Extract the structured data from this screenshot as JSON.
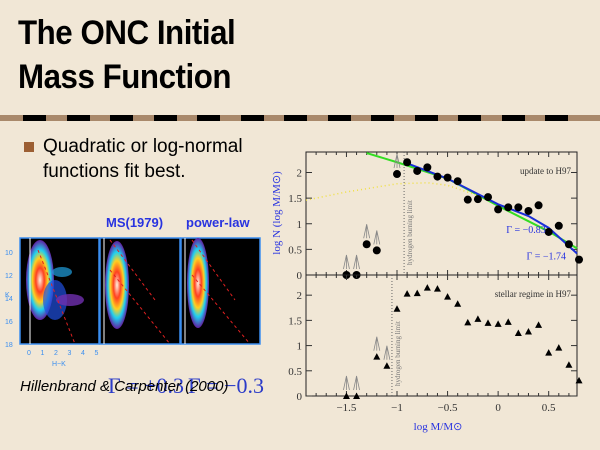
{
  "slide": {
    "title_line1": "The ONC Initial",
    "title_line2": "Mass Function",
    "bullet_text": "Quadratic or log-normal functions fit best.",
    "colors": {
      "background": "#f1e7d6",
      "rule": "#a9896b",
      "bullet": "#9c5f33",
      "label_blue": "#2833e0"
    }
  },
  "left_figure": {
    "panel_labels": [
      "MS(1979)",
      "power-law"
    ],
    "gamma_labels": [
      "Γ = +0.3",
      "Γ = −0.3"
    ],
    "citation": "Hillenbrand & Carpenter (2000)",
    "y_axis_label": "K",
    "y_ticks": [
      "10",
      "12",
      "14",
      "16",
      "18"
    ],
    "x_axis_label": "H−K",
    "x_ticks": [
      "0",
      "1",
      "2",
      "3",
      "4",
      "5"
    ]
  },
  "chart_data": {
    "type": "scatter",
    "xlabel": "log M/M⊙",
    "ylabel": "log N (log M/M⊙)",
    "xlim": [
      -1.9,
      0.78
    ],
    "x_ticks": [
      -1.5,
      -1,
      -0.5,
      0,
      0.5
    ],
    "x_tick_labels": [
      "−1.5",
      "−1",
      "−0.5",
      "0",
      "0.5"
    ],
    "panels": [
      {
        "name": "top",
        "annotation": "update to H97",
        "ylim": [
          0,
          2.4
        ],
        "y_ticks": [
          0,
          0.5,
          1,
          1.5,
          2
        ],
        "y_tick_labels": [
          "0",
          "0.5",
          "1",
          "1.5",
          "2"
        ],
        "vline_x": -0.93,
        "vline_label": "hydrogen burning limit",
        "points": [
          {
            "x": -1.5,
            "y": 0.0,
            "upper_limit": true
          },
          {
            "x": -1.4,
            "y": 0.0,
            "upper_limit": true
          },
          {
            "x": -1.3,
            "y": 0.6,
            "upper_limit": true
          },
          {
            "x": -1.2,
            "y": 0.48,
            "upper_limit": true
          },
          {
            "x": -1.0,
            "y": 1.97,
            "upper_limit": true
          },
          {
            "x": -0.9,
            "y": 2.2
          },
          {
            "x": -0.8,
            "y": 2.03
          },
          {
            "x": -0.7,
            "y": 2.1
          },
          {
            "x": -0.6,
            "y": 1.92
          },
          {
            "x": -0.5,
            "y": 1.9
          },
          {
            "x": -0.4,
            "y": 1.83
          },
          {
            "x": -0.3,
            "y": 1.47
          },
          {
            "x": -0.2,
            "y": 1.48
          },
          {
            "x": -0.1,
            "y": 1.52
          },
          {
            "x": 0.0,
            "y": 1.28
          },
          {
            "x": 0.1,
            "y": 1.32
          },
          {
            "x": 0.2,
            "y": 1.32
          },
          {
            "x": 0.3,
            "y": 1.25
          },
          {
            "x": 0.4,
            "y": 1.36
          },
          {
            "x": 0.5,
            "y": 0.84
          },
          {
            "x": 0.6,
            "y": 0.96
          },
          {
            "x": 0.7,
            "y": 0.6
          },
          {
            "x": 0.8,
            "y": 0.3
          }
        ],
        "fits": [
          {
            "name": "quadratic",
            "color": "#33dd22",
            "style": "solid",
            "x": [
              -1.3,
              -1.0,
              -0.5,
              0.0,
              0.5,
              0.78
            ],
            "y": [
              2.38,
              2.2,
              1.88,
              1.35,
              0.85,
              0.52
            ]
          },
          {
            "name": "power-law broken",
            "color": "#1a2fd8",
            "style": "solid-dash",
            "x": [
              -0.9,
              -0.5,
              0.0,
              0.3,
              0.5,
              0.78
            ],
            "y": [
              2.18,
              1.88,
              1.38,
              1.15,
              0.92,
              0.42
            ]
          },
          {
            "name": "log-normal",
            "color": "#f0e040",
            "style": "dotted",
            "x": [
              -1.9,
              -1.5,
              -1.0,
              -0.7,
              -0.5,
              -0.2
            ],
            "y": [
              1.46,
              1.62,
              1.78,
              1.8,
              1.75,
              1.55
            ]
          }
        ],
        "fit_labels": [
          "Γ = −0.83",
          "Γ = −1.74"
        ]
      },
      {
        "name": "bottom",
        "annotation": "stellar regime in H97",
        "ylim": [
          0,
          2.4
        ],
        "y_ticks": [
          0,
          0.5,
          1,
          1.5,
          2
        ],
        "y_tick_labels": [
          "0",
          "0.5",
          "1",
          "1.5",
          "2"
        ],
        "vline_x": -1.05,
        "vline_label": "hydrogen burning limit",
        "points": [
          {
            "x": -1.5,
            "y": 0.0,
            "upper_limit": true
          },
          {
            "x": -1.4,
            "y": 0.0,
            "upper_limit": true
          },
          {
            "x": -1.2,
            "y": 0.78,
            "upper_limit": true
          },
          {
            "x": -1.1,
            "y": 0.6,
            "upper_limit": true
          },
          {
            "x": -1.0,
            "y": 1.73
          },
          {
            "x": -0.9,
            "y": 2.03
          },
          {
            "x": -0.8,
            "y": 2.04
          },
          {
            "x": -0.7,
            "y": 2.15
          },
          {
            "x": -0.6,
            "y": 2.13
          },
          {
            "x": -0.5,
            "y": 1.97
          },
          {
            "x": -0.4,
            "y": 1.83
          },
          {
            "x": -0.3,
            "y": 1.46
          },
          {
            "x": -0.2,
            "y": 1.53
          },
          {
            "x": -0.1,
            "y": 1.45
          },
          {
            "x": 0.0,
            "y": 1.43
          },
          {
            "x": 0.1,
            "y": 1.47
          },
          {
            "x": 0.2,
            "y": 1.25
          },
          {
            "x": 0.3,
            "y": 1.28
          },
          {
            "x": 0.4,
            "y": 1.41
          },
          {
            "x": 0.5,
            "y": 0.86
          },
          {
            "x": 0.6,
            "y": 0.96
          },
          {
            "x": 0.7,
            "y": 0.62
          },
          {
            "x": 0.8,
            "y": 0.31
          }
        ]
      }
    ]
  }
}
